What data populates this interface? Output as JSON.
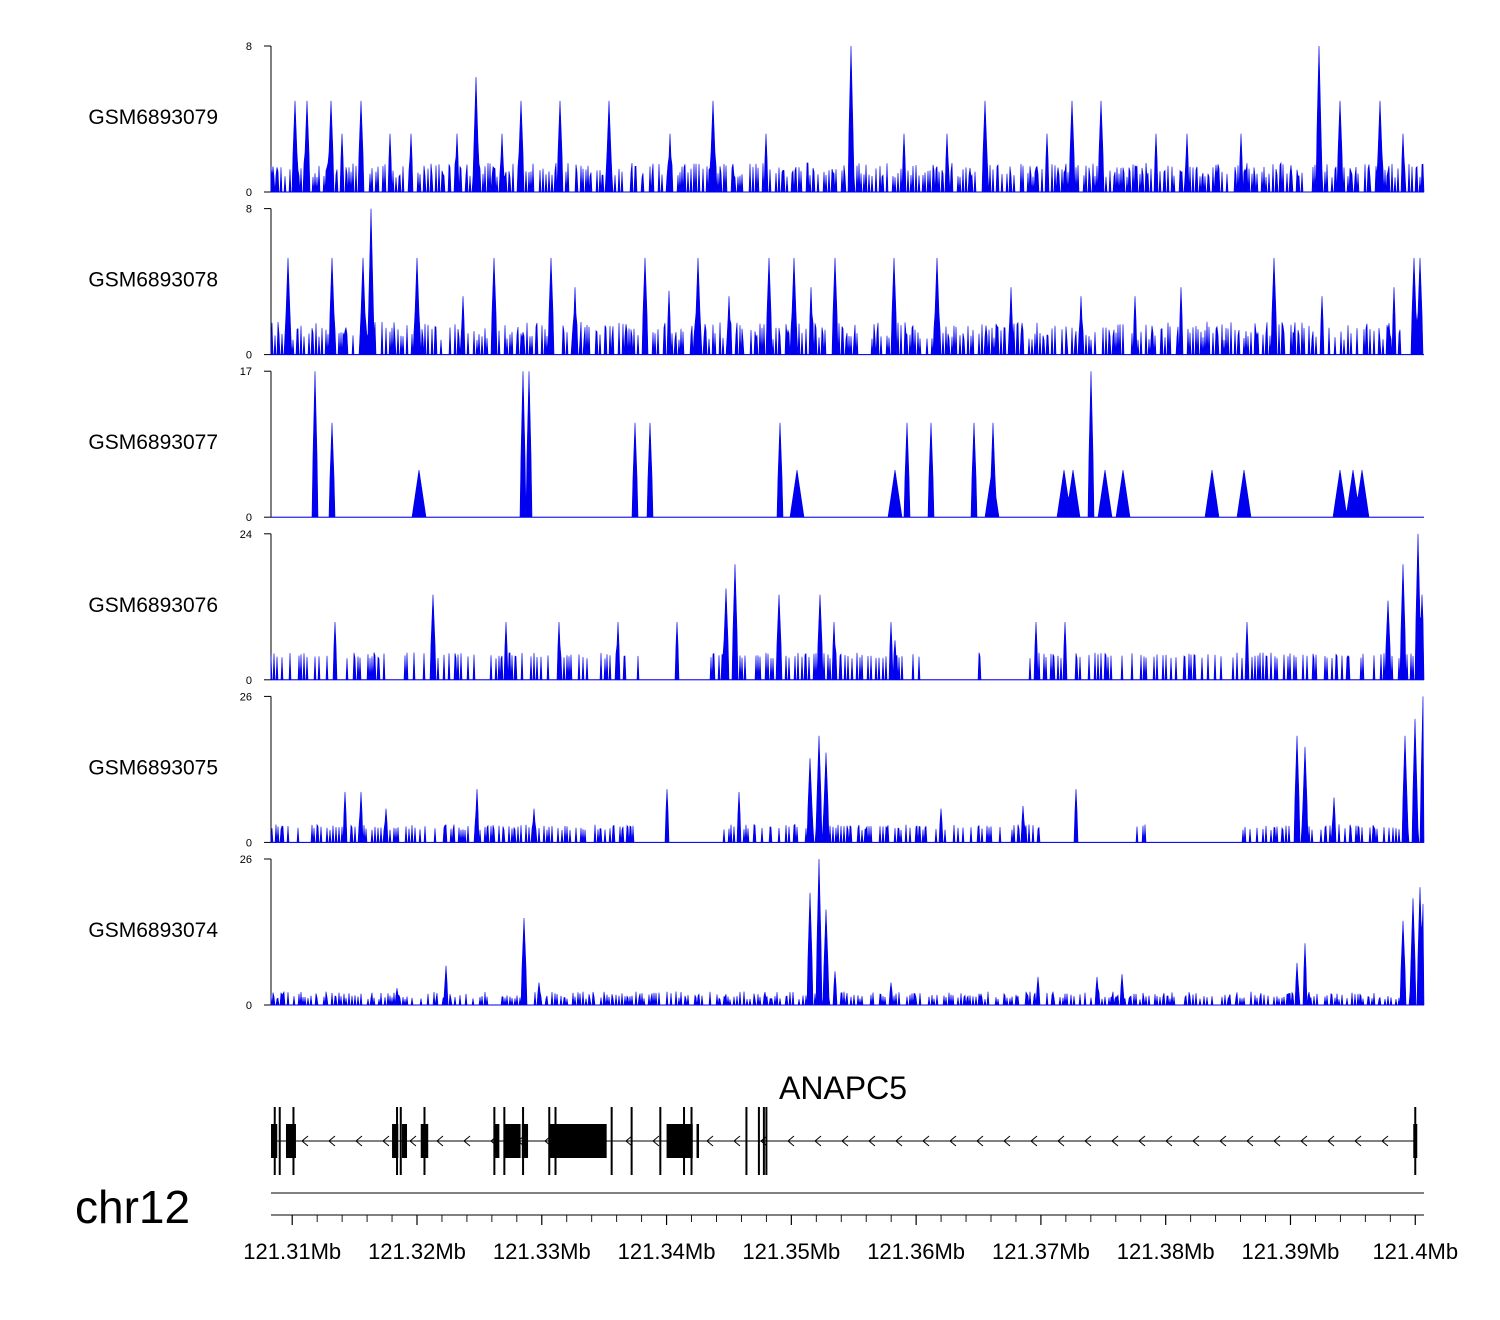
{
  "chart_data": {
    "type": "area",
    "chromosome": "chr12",
    "xunit": "Mb",
    "xlim": [
      121.3083,
      121.4007
    ],
    "xticks": [
      {
        "value": 121.31,
        "label": "121.31Mb"
      },
      {
        "value": 121.32,
        "label": "121.32Mb"
      },
      {
        "value": 121.33,
        "label": "121.33Mb"
      },
      {
        "value": 121.34,
        "label": "121.34Mb"
      },
      {
        "value": 121.35,
        "label": "121.35Mb"
      },
      {
        "value": 121.36,
        "label": "121.36Mb"
      },
      {
        "value": 121.37,
        "label": "121.37Mb"
      },
      {
        "value": 121.38,
        "label": "121.38Mb"
      },
      {
        "value": 121.39,
        "label": "121.39Mb"
      },
      {
        "value": 121.4,
        "label": "121.4Mb"
      }
    ],
    "fill_color": "#0000ee",
    "series": [
      {
        "name": "GSM6893079",
        "ylim": [
          0,
          8
        ],
        "ymax_label": "8",
        "ymin_label": "0",
        "peaks": [
          [
            121.3085,
            1.4
          ],
          [
            121.3102,
            5
          ],
          [
            121.3112,
            5
          ],
          [
            121.3131,
            5
          ],
          [
            121.314,
            3.2
          ],
          [
            121.3155,
            5
          ],
          [
            121.3178,
            3.2
          ],
          [
            121.3195,
            3.2
          ],
          [
            121.3232,
            3.2
          ],
          [
            121.3247,
            6.3
          ],
          [
            121.3268,
            3.2
          ],
          [
            121.3283,
            5
          ],
          [
            121.3315,
            5
          ],
          [
            121.3354,
            5
          ],
          [
            121.3403,
            3.2
          ],
          [
            121.3437,
            5
          ],
          [
            121.348,
            3.2
          ],
          [
            121.3548,
            8
          ],
          [
            121.359,
            3.2
          ],
          [
            121.3625,
            3.2
          ],
          [
            121.3655,
            5
          ],
          [
            121.3705,
            3.2
          ],
          [
            121.3725,
            5
          ],
          [
            121.3748,
            5
          ],
          [
            121.3792,
            3.2
          ],
          [
            121.3817,
            3.2
          ],
          [
            121.386,
            3.2
          ],
          [
            121.3923,
            8
          ],
          [
            121.394,
            5
          ],
          [
            121.3972,
            5
          ],
          [
            121.399,
            3.2
          ]
        ],
        "baseline": {
          "min": 0.8,
          "max": 1.6,
          "p": 0.72
        }
      },
      {
        "name": "GSM6893078",
        "ylim": [
          0,
          8
        ],
        "ymax_label": "8",
        "ymin_label": "0",
        "peaks": [
          [
            121.3097,
            5.3
          ],
          [
            121.3132,
            5.3
          ],
          [
            121.3157,
            5.3
          ],
          [
            121.3163,
            8
          ],
          [
            121.32,
            5.3
          ],
          [
            121.3237,
            3.2
          ],
          [
            121.3262,
            5.3
          ],
          [
            121.3307,
            5.3
          ],
          [
            121.3327,
            3.7
          ],
          [
            121.3383,
            5.3
          ],
          [
            121.3402,
            3.5
          ],
          [
            121.3425,
            5.3
          ],
          [
            121.345,
            3.2
          ],
          [
            121.3482,
            5.3
          ],
          [
            121.3502,
            5.3
          ],
          [
            121.3516,
            3.7
          ],
          [
            121.3535,
            5.3
          ],
          [
            121.3582,
            5.3
          ],
          [
            121.3617,
            5.3
          ],
          [
            121.3676,
            3.7
          ],
          [
            121.3732,
            3.2
          ],
          [
            121.3775,
            3.2
          ],
          [
            121.3812,
            3.7
          ],
          [
            121.3887,
            5.3
          ],
          [
            121.3925,
            3.2
          ],
          [
            121.3983,
            3.7
          ],
          [
            121.3999,
            5.3
          ],
          [
            121.4004,
            5.3
          ]
        ],
        "baseline": {
          "min": 0.8,
          "max": 1.8,
          "p": 0.7
        }
      },
      {
        "name": "GSM6893077",
        "ylim": [
          0,
          17
        ],
        "ymax_label": "17",
        "ymin_label": "0",
        "peaks": [
          [
            121.3118,
            17
          ],
          [
            121.3132,
            11
          ],
          [
            121.3285,
            17
          ],
          [
            121.329,
            17
          ],
          [
            121.3375,
            11
          ],
          [
            121.3387,
            11
          ],
          [
            121.3491,
            11
          ],
          [
            121.3593,
            11
          ],
          [
            121.3612,
            11
          ],
          [
            121.3646,
            11
          ],
          [
            121.3662,
            11
          ],
          [
            121.374,
            17
          ]
        ],
        "baseline": {
          "min": 5.5,
          "max": 5.5,
          "p": 0.22
        },
        "gaps": [
          [
            121.3275,
            121.333
          ],
          [
            121.3335,
            121.337
          ],
          [
            121.3508,
            121.354
          ],
          [
            121.3615,
            121.364
          ],
          [
            121.3667,
            121.3705
          ]
        ]
      },
      {
        "name": "GSM6893076",
        "ylim": [
          0,
          24
        ],
        "ymax_label": "24",
        "ymin_label": "0",
        "peaks": [
          [
            121.3134,
            9.5
          ],
          [
            121.3213,
            14
          ],
          [
            121.3271,
            9.5
          ],
          [
            121.3314,
            9.5
          ],
          [
            121.3361,
            9.5
          ],
          [
            121.3408,
            9.5
          ],
          [
            121.3448,
            15
          ],
          [
            121.3455,
            19
          ],
          [
            121.349,
            14
          ],
          [
            121.3523,
            14
          ],
          [
            121.3534,
            9.5
          ],
          [
            121.358,
            9.5
          ],
          [
            121.3583,
            6.5
          ],
          [
            121.3696,
            9.5
          ],
          [
            121.3719,
            9.5
          ],
          [
            121.3865,
            9.5
          ],
          [
            121.3978,
            13
          ],
          [
            121.399,
            19
          ],
          [
            121.4002,
            24
          ],
          [
            121.4005,
            14
          ]
        ],
        "baseline": {
          "min": 3.5,
          "max": 4.5,
          "p": 0.45
        },
        "gaps": [
          [
            121.3378,
            121.3425
          ],
          [
            121.3605,
            121.365
          ],
          [
            121.3655,
            121.369
          ]
        ]
      },
      {
        "name": "GSM6893075",
        "ylim": [
          0,
          26
        ],
        "ymax_label": "26",
        "ymin_label": "0",
        "peaks": [
          [
            121.3142,
            9
          ],
          [
            121.3155,
            9
          ],
          [
            121.3175,
            6
          ],
          [
            121.3248,
            9.5
          ],
          [
            121.3294,
            6
          ],
          [
            121.34,
            9.5
          ],
          [
            121.3458,
            9
          ],
          [
            121.3515,
            15
          ],
          [
            121.3522,
            19
          ],
          [
            121.3528,
            16
          ],
          [
            121.362,
            6
          ],
          [
            121.3686,
            6.5
          ],
          [
            121.3728,
            9.5
          ],
          [
            121.3905,
            19
          ],
          [
            121.3912,
            17
          ],
          [
            121.3935,
            8
          ],
          [
            121.3992,
            19
          ],
          [
            121.4,
            22
          ],
          [
            121.4006,
            26
          ]
        ],
        "baseline": {
          "min": 2.2,
          "max": 3.2,
          "p": 0.55
        },
        "gaps": [
          [
            121.3378,
            121.344
          ],
          [
            121.37,
            121.377
          ],
          [
            121.3785,
            121.386
          ]
        ]
      },
      {
        "name": "GSM6893074",
        "ylim": [
          0,
          26
        ],
        "ymax_label": "26",
        "ymin_label": "0",
        "peaks": [
          [
            121.3184,
            3
          ],
          [
            121.3223,
            7
          ],
          [
            121.3286,
            15.5
          ],
          [
            121.3298,
            4
          ],
          [
            121.3515,
            20
          ],
          [
            121.3522,
            26
          ],
          [
            121.3528,
            17
          ],
          [
            121.3535,
            6
          ],
          [
            121.358,
            4
          ],
          [
            121.3698,
            5
          ],
          [
            121.3745,
            5
          ],
          [
            121.3765,
            5.5
          ],
          [
            121.3905,
            7.5
          ],
          [
            121.3912,
            11
          ],
          [
            121.399,
            15
          ],
          [
            121.3998,
            19
          ],
          [
            121.4004,
            21
          ],
          [
            121.4006,
            18
          ]
        ],
        "baseline": {
          "min": 1,
          "max": 2.4,
          "p": 0.62
        }
      }
    ],
    "gene": {
      "name": "ANAPC5",
      "strand": "-",
      "start": 121.3083,
      "end": 121.4,
      "exons": [
        [
          121.3083,
          121.3088
        ],
        [
          121.3095,
          121.3103
        ],
        [
          121.318,
          121.3185
        ],
        [
          121.3188,
          121.3192
        ],
        [
          121.3203,
          121.3209
        ],
        [
          121.3262,
          121.3266
        ],
        [
          121.327,
          121.3283
        ],
        [
          121.3284,
          121.3289
        ],
        [
          121.3306,
          121.3352
        ],
        [
          121.34,
          121.3421
        ],
        [
          121.3424,
          121.3426
        ]
      ],
      "exon_marks": [
        121.3086,
        121.309,
        121.3101,
        121.3184,
        121.3187,
        121.3206,
        121.3262,
        121.327,
        121.3285,
        121.3306,
        121.3311,
        121.3356,
        121.3372,
        121.342,
        121.3395,
        121.3414,
        121.3464,
        121.3474,
        121.3478,
        121.348,
        121.4
      ]
    }
  }
}
